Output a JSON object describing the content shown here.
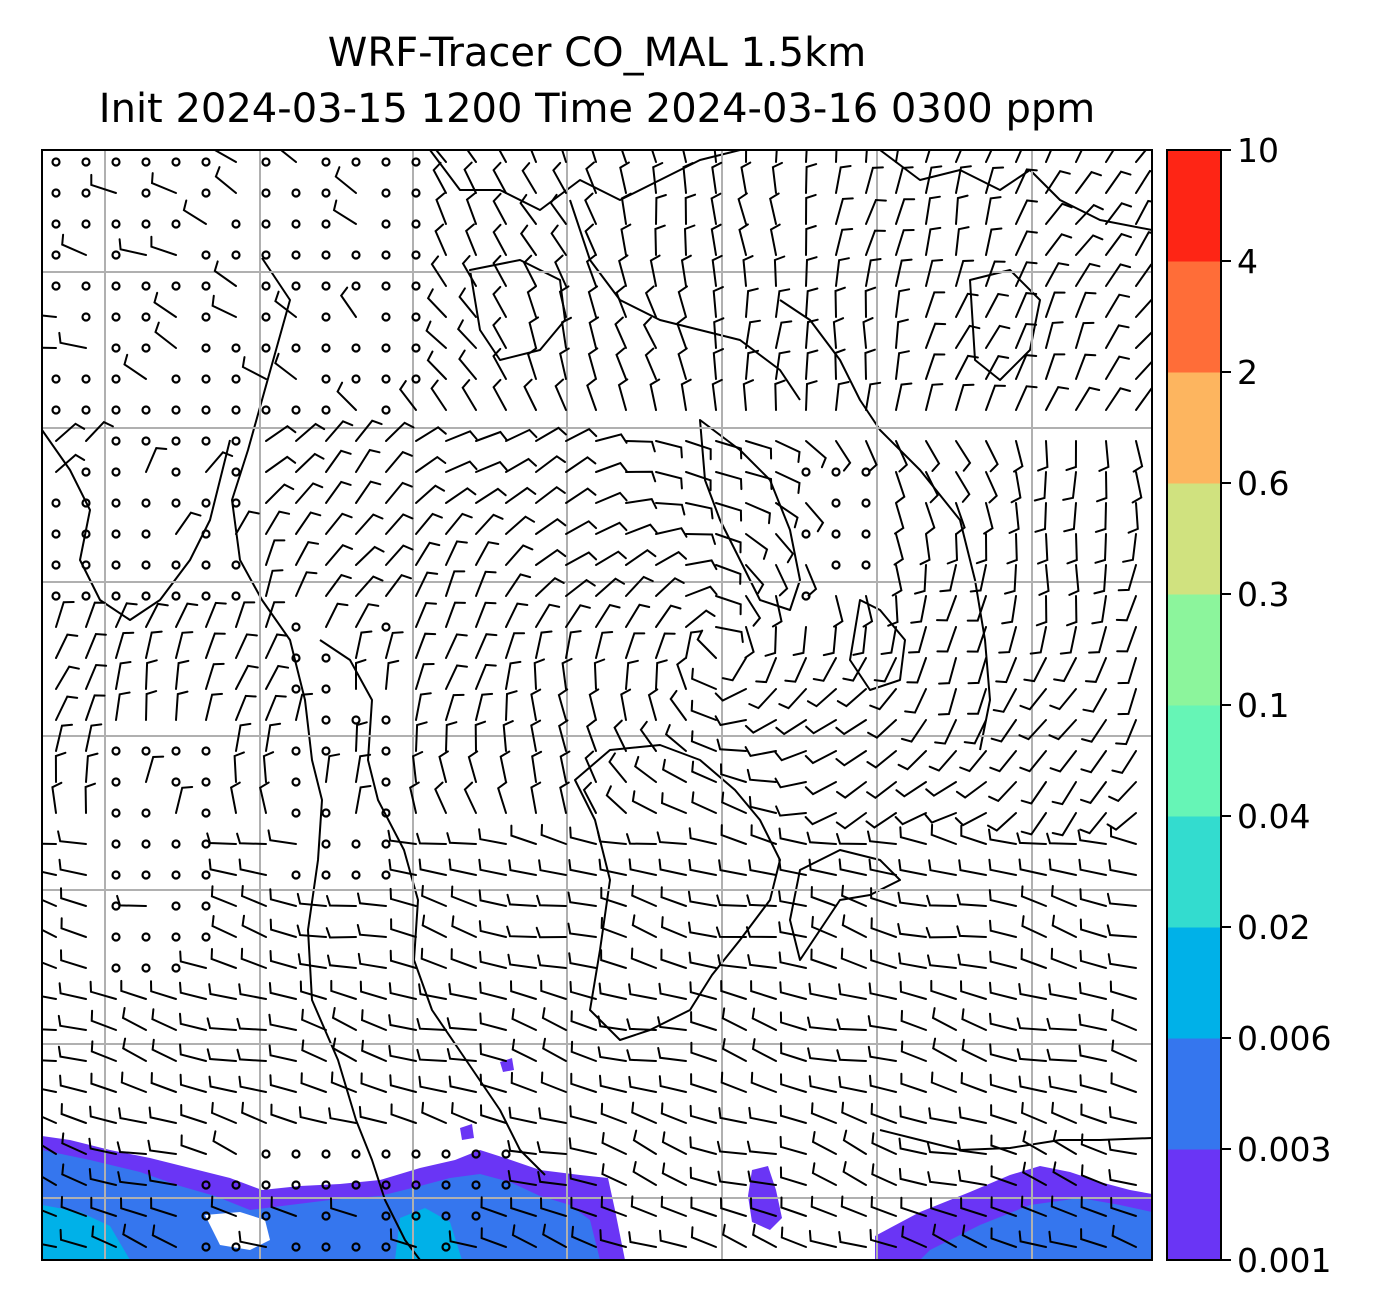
{
  "title": {
    "line1": "WRF-Tracer CO_MAL 1.5km",
    "line2": "Init 2024-03-15 1200 Time 2024-03-16 0300 ppm"
  },
  "colorbar": {
    "levels": [
      "0.001",
      "0.003",
      "0.006",
      "0.02",
      "0.04",
      "0.1",
      "0.3",
      "0.6",
      "2",
      "4",
      "10"
    ],
    "colors": [
      "#6a35f5",
      "#3576ee",
      "#00b1e8",
      "#33dccf",
      "#66f5b6",
      "#8cf59c",
      "#d0e27f",
      "#fdb55f",
      "#ff6d38",
      "#fe2515"
    ]
  },
  "chart_data": {
    "type": "heatmap",
    "variable": "CO_MAL tracer",
    "units": "ppm",
    "levels": [
      0.001,
      0.003,
      0.006,
      0.02,
      0.04,
      0.1,
      0.3,
      0.6,
      2,
      4,
      10
    ],
    "overlay": "wind barbs",
    "coastlines": true,
    "grid": true,
    "colorbar_position": "right"
  }
}
